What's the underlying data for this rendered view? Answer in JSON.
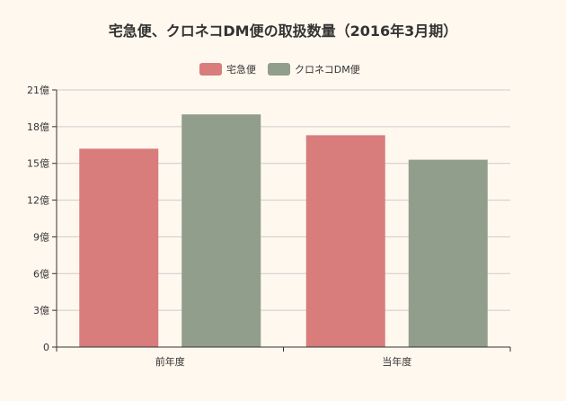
{
  "chart_data": {
    "type": "bar",
    "title": "宅急便、クロネコDM便の取扱数量（2016年3月期）",
    "categories": [
      "前年度",
      "当年度"
    ],
    "series": [
      {
        "name": "宅急便",
        "values": [
          16.2,
          17.3
        ],
        "color": "#d87c7c"
      },
      {
        "name": "クロネコDM便",
        "values": [
          19.0,
          15.3
        ],
        "color": "#919e8b"
      }
    ],
    "ylim": [
      0,
      21
    ],
    "yticks": [
      0,
      3,
      6,
      9,
      12,
      15,
      18,
      21
    ],
    "ytick_labels": [
      "0",
      "3億",
      "6億",
      "9億",
      "12億",
      "15億",
      "18億",
      "21億"
    ],
    "legend_position": "top-center",
    "grid": true,
    "background": "#fff8ef",
    "grid_color": "#cccccc",
    "axis_color": "#333333"
  }
}
